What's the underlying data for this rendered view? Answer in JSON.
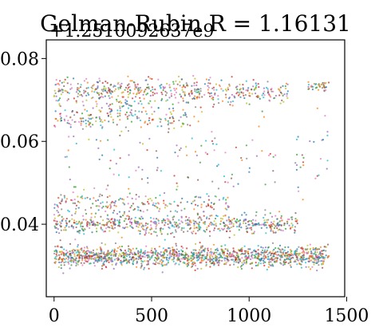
{
  "chart_data": {
    "type": "scatter",
    "title": "Gelman-Rubin R = 1.16131",
    "y_offset_label": "+1.2510092637e9",
    "xlabel": "",
    "ylabel": "",
    "xlim": [
      -40,
      1490
    ],
    "ylim": [
      0.0225,
      0.0845
    ],
    "x_ticks": [
      {
        "value": 0,
        "label": "0"
      },
      {
        "value": 500,
        "label": "500"
      },
      {
        "value": 1000,
        "label": "1000"
      },
      {
        "value": 1500,
        "label": "1500"
      }
    ],
    "y_ticks": [
      {
        "value": 0.04,
        "label": "0.04"
      },
      {
        "value": 0.06,
        "label": "0.06"
      },
      {
        "value": 0.08,
        "label": "0.08"
      }
    ],
    "grid": false,
    "legend": "none",
    "series_colors": [
      "#1f77b4",
      "#ff7f0e",
      "#2ca02c",
      "#d62728",
      "#9467bd",
      "#8c564b",
      "#e377c2",
      "#7f7f7f",
      "#bcbd22",
      "#17becf"
    ],
    "clusters": [
      {
        "x_range": [
          0,
          1410
        ],
        "y_center": 0.0322,
        "y_spread": 0.0022,
        "points": 1400
      },
      {
        "x_range": [
          0,
          1250
        ],
        "y_center": 0.04,
        "y_spread": 0.0022,
        "points": 600
      },
      {
        "x_range": [
          0,
          900
        ],
        "y_center": 0.045,
        "y_spread": 0.0025,
        "points": 200
      },
      {
        "x_range": [
          0,
          1200
        ],
        "y_center": 0.072,
        "y_spread": 0.0028,
        "points": 500
      },
      {
        "x_range": [
          0,
          700
        ],
        "y_center": 0.066,
        "y_spread": 0.003,
        "points": 200
      },
      {
        "x_range": [
          1300,
          1420
        ],
        "y_center": 0.0735,
        "y_spread": 0.0012,
        "points": 40
      },
      {
        "x_range": [
          50,
          1420
        ],
        "y_center": 0.056,
        "y_spread": 0.008,
        "points": 140
      }
    ]
  }
}
